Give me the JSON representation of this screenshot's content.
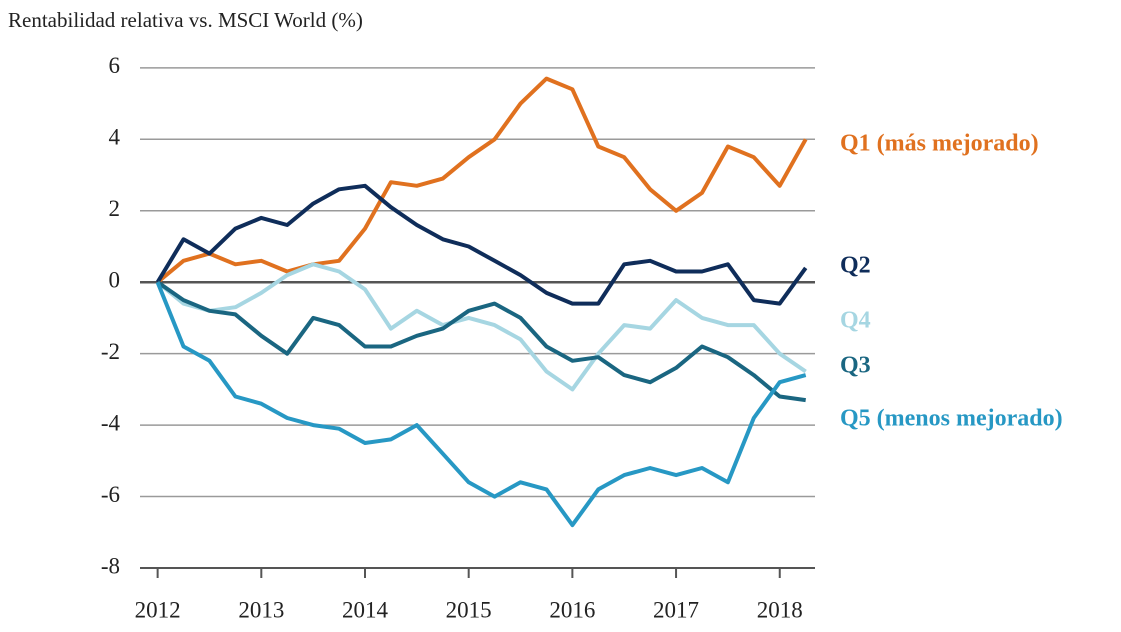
{
  "chart_data": {
    "type": "line",
    "title": "Rentabilidad relativa vs. MSCI World (%)",
    "x": [
      2012,
      2012.25,
      2012.5,
      2012.75,
      2013,
      2013.25,
      2013.5,
      2013.75,
      2014,
      2014.25,
      2014.5,
      2014.75,
      2015,
      2015.25,
      2015.5,
      2015.75,
      2016,
      2016.25,
      2016.5,
      2016.75,
      2017,
      2017.25,
      2017.5,
      2017.75,
      2018,
      2018.25
    ],
    "series": [
      {
        "name": "Q1 (más mejorado)",
        "color": "#e0711f",
        "values": [
          0,
          0.6,
          0.8,
          0.5,
          0.6,
          0.3,
          0.5,
          0.6,
          1.5,
          2.8,
          2.7,
          2.9,
          3.5,
          4.0,
          5.0,
          5.7,
          5.4,
          3.8,
          3.5,
          2.6,
          2.0,
          2.5,
          3.8,
          3.5,
          2.7,
          4.0
        ]
      },
      {
        "name": "Q2",
        "color": "#0f2d5a",
        "values": [
          0,
          1.2,
          0.8,
          1.5,
          1.8,
          1.6,
          2.2,
          2.6,
          2.7,
          2.1,
          1.6,
          1.2,
          1.0,
          0.6,
          0.2,
          -0.3,
          -0.6,
          -0.6,
          0.5,
          0.6,
          0.3,
          0.3,
          0.5,
          -0.5,
          -0.6,
          0.4
        ]
      },
      {
        "name": "Q4",
        "color": "#a6d6e2",
        "values": [
          0,
          -0.6,
          -0.8,
          -0.7,
          -0.3,
          0.2,
          0.5,
          0.3,
          -0.2,
          -1.3,
          -0.8,
          -1.2,
          -1.0,
          -1.2,
          -1.6,
          -2.5,
          -3.0,
          -2.0,
          -1.2,
          -1.3,
          -0.5,
          -1.0,
          -1.2,
          -1.2,
          -2.0,
          -2.5
        ]
      },
      {
        "name": "Q3",
        "color": "#1a6681",
        "values": [
          0,
          -0.5,
          -0.8,
          -0.9,
          -1.5,
          -2.0,
          -1.0,
          -1.2,
          -1.8,
          -1.8,
          -1.5,
          -1.3,
          -0.8,
          -0.6,
          -1.0,
          -1.8,
          -2.2,
          -2.1,
          -2.6,
          -2.8,
          -2.4,
          -1.8,
          -2.1,
          -2.6,
          -3.2,
          -3.3
        ]
      },
      {
        "name": "Q5 (menos mejorado)",
        "color": "#2798c4",
        "values": [
          0,
          -1.8,
          -2.2,
          -3.2,
          -3.4,
          -3.8,
          -4.0,
          -4.1,
          -4.5,
          -4.4,
          -4.0,
          -4.8,
          -5.6,
          -6.0,
          -5.6,
          -5.8,
          -6.8,
          -5.8,
          -5.4,
          -5.2,
          -5.4,
          -5.2,
          -5.6,
          -3.8,
          -2.8,
          -2.6
        ]
      }
    ],
    "xlim": [
      2011.83,
      2018.34
    ],
    "ylim": [
      -8,
      6.5
    ],
    "xticks": [
      2012,
      2013,
      2014,
      2015,
      2016,
      2017,
      2018
    ],
    "yticks": [
      -8,
      -6,
      -4,
      -2,
      0,
      2,
      4,
      6
    ],
    "grid": true
  }
}
